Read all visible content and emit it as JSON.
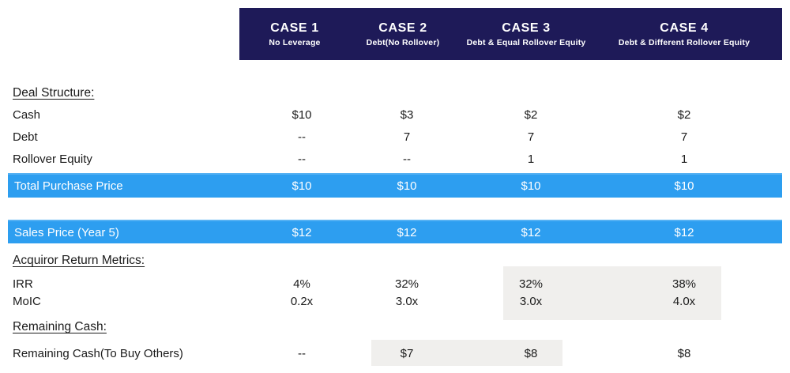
{
  "colors": {
    "header_navy": "#1e1a58",
    "total_row_blue": "#2d9ef0",
    "highlight_gray": "#f0efed"
  },
  "header": {
    "cases": [
      {
        "title": "CASE 1",
        "subtitle": "No Leverage"
      },
      {
        "title": "CASE 2",
        "subtitle": "Debt(No Rollover)"
      },
      {
        "title": "CASE 3",
        "subtitle": "Debt & Equal Rollover Equity"
      },
      {
        "title": "CASE 4",
        "subtitle": "Debt & Different Rollover Equity"
      }
    ]
  },
  "table": {
    "deal_structure": {
      "heading": "Deal Structure:",
      "rows": [
        {
          "label": "Cash",
          "values": [
            "$10",
            "$3",
            "$2",
            "$2"
          ]
        },
        {
          "label": "Debt",
          "values": [
            "--",
            "7",
            "7",
            "7"
          ]
        },
        {
          "label": "Rollover Equity",
          "values": [
            "--",
            "--",
            "1",
            "1"
          ]
        }
      ]
    },
    "total_purchase_price": {
      "label": "Total Purchase Price",
      "values": [
        "$10",
        "$10",
        "$10",
        "$10"
      ]
    },
    "sales_price": {
      "label": "Sales Price (Year 5)",
      "values": [
        "$12",
        "$12",
        "$12",
        "$12"
      ]
    },
    "acquiror_return_metrics": {
      "heading": "Acquiror Return Metrics:",
      "rows": [
        {
          "label": "IRR",
          "values": [
            "4%",
            "32%",
            "32%",
            "38%"
          ]
        },
        {
          "label": "MoIC",
          "values": [
            "0.2x",
            "3.0x",
            "3.0x",
            "4.0x"
          ]
        }
      ]
    },
    "remaining_cash": {
      "heading": "Remaining Cash:",
      "rows": [
        {
          "label": "Remaining Cash(To Buy Others)",
          "values": [
            "--",
            "$7",
            "$8",
            "$8"
          ]
        }
      ]
    }
  }
}
